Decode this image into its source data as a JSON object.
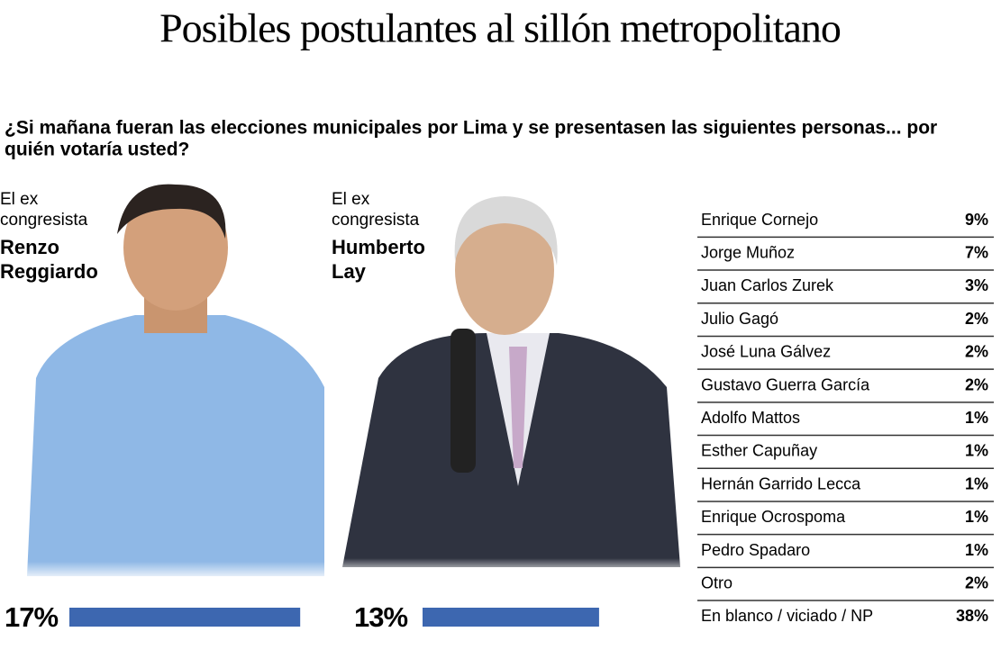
{
  "title": "Posibles postulantes al sillón metropolitano",
  "question": [
    "¿Si mañana fueran las elecciones municipales por Lima y se presentasen las siguientes personas... por",
    "quién votaría usted?"
  ],
  "featured": [
    {
      "intro": [
        "El ex",
        "congresista"
      ],
      "name": [
        "Renzo",
        "Reggiardo"
      ],
      "value": 17,
      "value_label": "17%",
      "color": "#3d67b0"
    },
    {
      "intro": [
        "El ex",
        "congresista"
      ],
      "name": [
        "Humberto",
        "Lay"
      ],
      "value": 13,
      "value_label": "13%",
      "color": "#3d67b0"
    }
  ],
  "table": {
    "rows": [
      [
        "Enrique Cornejo",
        "9%"
      ],
      [
        "Jorge Muñoz",
        "7%"
      ],
      [
        "Juan Carlos Zurek",
        "3%"
      ],
      [
        "Julio Gagó",
        "2%"
      ],
      [
        "José Luna Gálvez",
        "2%"
      ],
      [
        "Gustavo Guerra García",
        "2%"
      ],
      [
        "Adolfo Mattos",
        "1%"
      ],
      [
        "Esther Capuñay",
        "1%"
      ],
      [
        "Hernán Garrido Lecca",
        "1%"
      ],
      [
        "Enrique Ocrospoma",
        "1%"
      ],
      [
        "Pedro Spadaro",
        "1%"
      ],
      [
        "Otro",
        "2%"
      ],
      [
        "En blanco / viciado / NP",
        "38%"
      ]
    ]
  }
}
